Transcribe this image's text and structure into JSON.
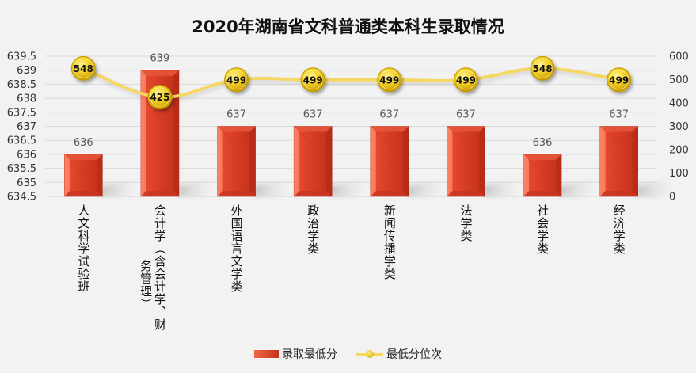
{
  "chart_data": {
    "type": "bar+line",
    "title": "2020年湖南省文科普通类本科生录取情况",
    "categories": [
      "人文科学试验班",
      "会计学（含会计学、财务管理）",
      "外国语言文学类",
      "政治学类",
      "新闻传播学类",
      "法学类",
      "社会学类",
      "经济学类"
    ],
    "category_lines": [
      [
        "人文科学试验班"
      ],
      [
        "会计学（含会计学、财",
        "务管理）"
      ],
      [
        "外国语言文学类"
      ],
      [
        "政治学类"
      ],
      [
        "新闻传播学类"
      ],
      [
        "法学类"
      ],
      [
        "社会学类"
      ],
      [
        "经济学类"
      ]
    ],
    "series": [
      {
        "name": "录取最低分",
        "type": "bar",
        "axis": "left",
        "values": [
          636,
          639,
          637,
          637,
          637,
          637,
          636,
          637
        ],
        "color": "#d63c24"
      },
      {
        "name": "最低分位次",
        "type": "line",
        "axis": "right",
        "values": [
          548,
          425,
          499,
          499,
          499,
          499,
          548,
          499
        ],
        "color": "#f7d764"
      }
    ],
    "y_left": {
      "min": 634.5,
      "max": 639.5,
      "ticks": [
        "634.5",
        "635",
        "635.5",
        "636",
        "636.5",
        "637",
        "637.5",
        "638",
        "638.5",
        "639",
        "639.5"
      ]
    },
    "y_right": {
      "min": 0,
      "max": 600,
      "ticks": [
        "0",
        "100",
        "200",
        "300",
        "400",
        "500",
        "600"
      ]
    },
    "grid": true,
    "legend": "bottom",
    "xlabel": "",
    "ylabel": ""
  }
}
